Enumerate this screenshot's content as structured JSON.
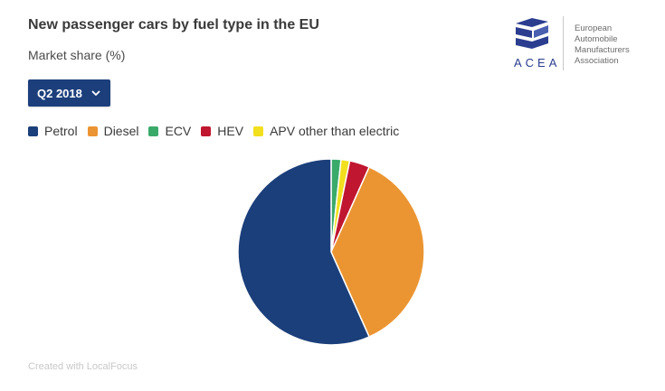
{
  "header": {
    "title": "New passenger cars by fuel type in the EU",
    "subtitle": "Market share (%)"
  },
  "period_selector": {
    "selected": "Q2 2018"
  },
  "logo": {
    "acronym": "ACEA",
    "name_lines": [
      "European",
      "Automobile",
      "Manufacturers",
      "Association"
    ]
  },
  "credit": "Created with LocalFocus",
  "colors": {
    "accent": "#1c3f7c"
  },
  "chart_data": {
    "type": "pie",
    "categories": [
      "Petrol",
      "Diesel",
      "ECV",
      "HEV",
      "APV other than electric"
    ],
    "values": [
      56.7,
      36.6,
      1.7,
      3.5,
      1.5
    ],
    "colors": [
      "#1b3f7a",
      "#eb9532",
      "#3aaa6a",
      "#c0162f",
      "#f2df1d"
    ],
    "legend_position": "top-left"
  }
}
